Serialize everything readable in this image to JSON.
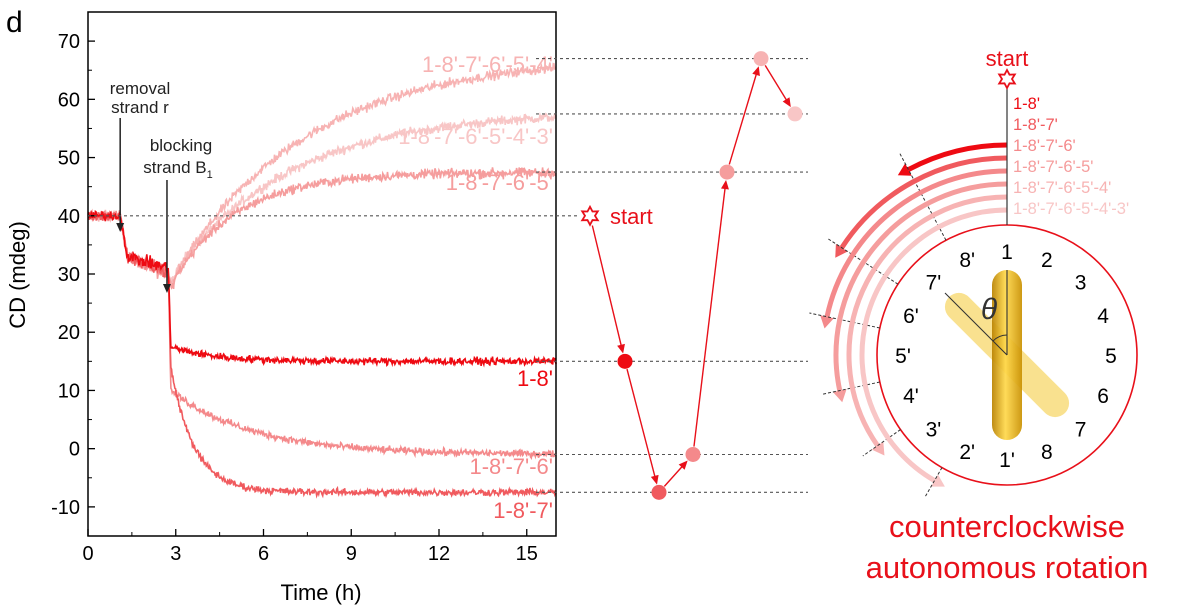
{
  "panel_label": "d",
  "colors": {
    "axis": "#000000",
    "guide": "#555555",
    "red": "#e8101a",
    "c1": "#ee0a12",
    "c2": "#f05a5e",
    "c3": "#f4898b",
    "c4": "#f59d9d",
    "c5": "#f7b3b3",
    "c6": "#f8c6c6",
    "gold": "#e8b400",
    "gold_light": "#f7d76a"
  },
  "chart_data": {
    "type": "line",
    "xlabel": "Time (h)",
    "ylabel": "CD (mdeg)",
    "xlim": [
      0,
      16
    ],
    "ylim": [
      -15,
      75
    ],
    "xticks": [
      0,
      3,
      6,
      9,
      12,
      15
    ],
    "yticks": [
      -10,
      0,
      10,
      20,
      30,
      40,
      50,
      60,
      70
    ],
    "reference_level": 40,
    "annotations": [
      {
        "lines": [
          "removal",
          "strand r"
        ],
        "arrow_x": 1.1
      },
      {
        "lines": [
          "blocking",
          "strand B"
        ],
        "subscript": "1",
        "arrow_x": 2.7
      }
    ],
    "series": [
      {
        "name": "1-8'",
        "color_key": "c1",
        "start": 40,
        "pre_drop": 31,
        "after_drop": 17.5,
        "final": 15,
        "tau": 1.5
      },
      {
        "name": "1-8'-7'",
        "color_key": "c2",
        "start": 40,
        "pre_drop": 30,
        "after_drop": 14,
        "final": -7.5,
        "tau": 0.8
      },
      {
        "name": "1-8'-7'-6'",
        "color_key": "c3",
        "start": 40,
        "pre_drop": 30.5,
        "after_drop": 10,
        "final": -1,
        "tau": 2.8
      },
      {
        "name": "1-8'-7'-6'-5'",
        "color_key": "c4",
        "start": 40,
        "pre_drop": 29.5,
        "after_drop": 29.5,
        "final": 47.5,
        "tau": 2.2
      },
      {
        "name": "1-8'-7'-6'-5'-4'",
        "color_key": "c5",
        "start": 40,
        "pre_drop": 30,
        "after_drop": 30,
        "final": 67.5,
        "tau": 4.5
      },
      {
        "name": "1-8'-7'-6'-5'-4'-3'",
        "color_key": "c6",
        "start": 40,
        "pre_drop": 30.5,
        "after_drop": 30.5,
        "final": 58,
        "tau": 4
      }
    ]
  },
  "sequence": {
    "start_label": "start",
    "start_value": 40,
    "points": [
      {
        "value": 15,
        "color_key": "c1"
      },
      {
        "value": -7.5,
        "color_key": "c2"
      },
      {
        "value": -1,
        "color_key": "c3"
      },
      {
        "value": 47.5,
        "color_key": "c4"
      },
      {
        "value": 67,
        "color_key": "c5"
      },
      {
        "value": 57.5,
        "color_key": "c6"
      }
    ]
  },
  "dial": {
    "start_label": "start",
    "angle_symbol": "θ",
    "legend": [
      "1-8'",
      "1-8'-7'",
      "1-8'-7'-6'",
      "1-8'-7'-6'-5'",
      "1-8'-7'-6'-5'-4'",
      "1-8'-7'-6'-5'-4'-3'"
    ],
    "legend_color_keys": [
      "c1",
      "c2",
      "c3",
      "c4",
      "c5",
      "c6"
    ],
    "numbers_right": [
      "1",
      "2",
      "3",
      "4",
      "5",
      "6",
      "7",
      "8"
    ],
    "numbers_left": [
      "1'",
      "2'",
      "3'",
      "4'",
      "5'",
      "6'",
      "7'",
      "8'"
    ],
    "caption": [
      "counterclockwise",
      "autonomous rotation"
    ]
  }
}
